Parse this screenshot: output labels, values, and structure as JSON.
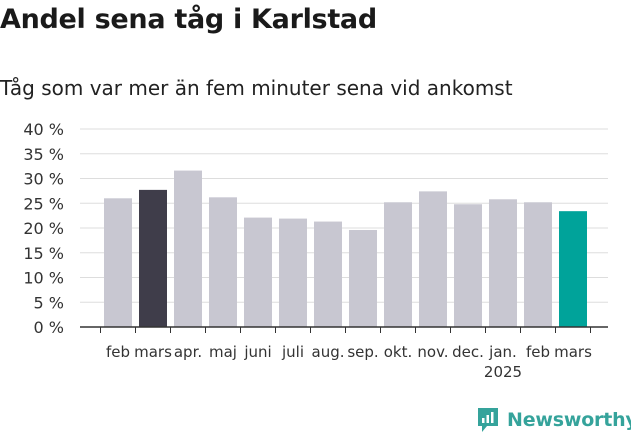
{
  "title": "Andel sena tåg i Karlstad",
  "subtitle": "Tåg som var mer än fem minuter sena vid ankomst",
  "brand": {
    "name": "Newsworthy",
    "icon": "newsworthy-logo-icon"
  },
  "colors": {
    "default_bar": "#c8c7d1",
    "highlight_previous": "#3f3d4a",
    "highlight_current": "#00a39a",
    "grid": "#dddddd",
    "axis": "#333333",
    "brand": "#35a39b"
  },
  "chart_data": {
    "type": "bar",
    "title": "Andel sena tåg i Karlstad",
    "subtitle": "Tåg som var mer än fem minuter sena vid ankomst",
    "xlabel": "",
    "ylabel": "",
    "ylim": [
      0,
      40
    ],
    "y_ticks": [
      0,
      5,
      10,
      15,
      20,
      25,
      30,
      35,
      40
    ],
    "y_tick_labels": [
      "0 %",
      "5 %",
      "10 %",
      "15 %",
      "20 %",
      "25 %",
      "30 %",
      "35 %",
      "40 %"
    ],
    "grid": true,
    "categories": [
      "feb",
      "mars",
      "apr.",
      "maj",
      "juni",
      "juli",
      "aug.",
      "sep.",
      "okt.",
      "nov.",
      "dec.",
      "jan.",
      "feb",
      "mars"
    ],
    "year_label": {
      "text": "2025",
      "category_index": 11
    },
    "values": [
      26.0,
      27.7,
      31.6,
      26.2,
      22.1,
      21.9,
      21.3,
      19.6,
      25.2,
      27.4,
      24.8,
      25.8,
      25.2,
      23.4
    ],
    "bar_color_roles": [
      "default",
      "highlight_previous",
      "default",
      "default",
      "default",
      "default",
      "default",
      "default",
      "default",
      "default",
      "default",
      "default",
      "default",
      "highlight_current"
    ]
  }
}
